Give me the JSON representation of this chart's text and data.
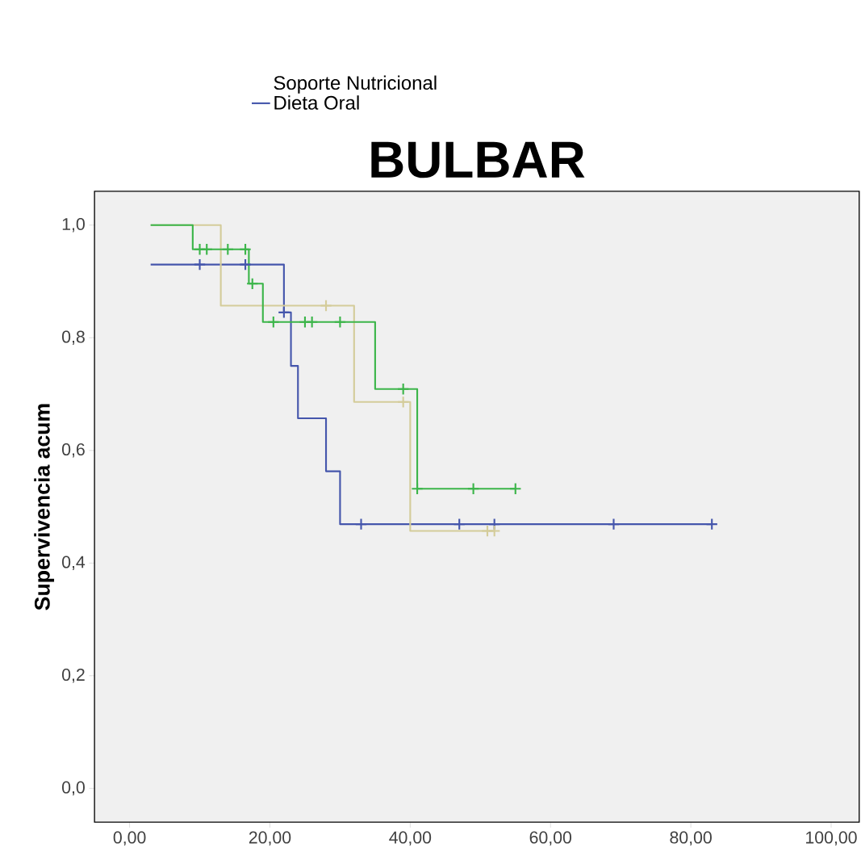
{
  "chart_data": {
    "type": "step",
    "title": "BULBAR",
    "ylabel": "Supervivencia acum",
    "legend_title": "Soporte Nutricional",
    "legend": "top left",
    "xlim": [
      -5,
      104
    ],
    "ylim": [
      -0.06,
      1.06
    ],
    "xticks": [
      {
        "value": 0,
        "label": "0,00"
      },
      {
        "value": 20,
        "label": "20,00"
      },
      {
        "value": 40,
        "label": "40,00"
      },
      {
        "value": 60,
        "label": "60,00"
      },
      {
        "value": 80,
        "label": "80,00"
      },
      {
        "value": 100,
        "label": "100,00"
      }
    ],
    "yticks": [
      {
        "value": 0,
        "label": "0,0"
      },
      {
        "value": 0.2,
        "label": "0,2"
      },
      {
        "value": 0.4,
        "label": "0,4"
      },
      {
        "value": 0.6,
        "label": "0,6"
      },
      {
        "value": 0.8,
        "label": "0,8"
      },
      {
        "value": 1.0,
        "label": "1,0"
      }
    ],
    "series": [
      {
        "name": "Dieta Oral",
        "marker": "none",
        "color": "#4556ac",
        "x": [
          3,
          22,
          23,
          24,
          28,
          30,
          83
        ],
        "values": [
          0.93,
          0.845,
          0.75,
          0.657,
          0.563,
          0.469,
          0.469
        ]
      },
      {
        "marker": "none",
        "color": "#d4cc9a",
        "x": [
          3,
          13,
          32,
          40,
          52
        ],
        "values": [
          1.0,
          0.857,
          0.686,
          0.457,
          0.457
        ]
      },
      {
        "marker": "none",
        "color": "#3cb54a",
        "x": [
          3,
          9,
          17,
          19,
          35,
          41,
          55
        ],
        "values": [
          1.0,
          0.957,
          0.896,
          0.828,
          0.709,
          0.532,
          0.532
        ]
      },
      {
        "type": "scatter",
        "marker": "cross",
        "color": "#4556ac",
        "x": [
          10,
          16.5,
          22,
          33,
          47,
          52,
          69,
          83
        ],
        "values": [
          0.93,
          0.93,
          0.845,
          0.469,
          0.469,
          0.469,
          0.469,
          0.469
        ]
      },
      {
        "type": "scatter",
        "marker": "cross",
        "color": "#d4cc9a",
        "x": [
          28,
          39,
          51,
          52
        ],
        "values": [
          0.857,
          0.686,
          0.457,
          0.457
        ]
      },
      {
        "type": "scatter",
        "marker": "cross",
        "color": "#3cb54a",
        "x": [
          10,
          11,
          14,
          16.5,
          17.5,
          20.5,
          25,
          26,
          30,
          39,
          41,
          49,
          55
        ],
        "values": [
          0.957,
          0.957,
          0.957,
          0.957,
          0.896,
          0.828,
          0.828,
          0.828,
          0.828,
          0.709,
          0.532,
          0.532,
          0.532
        ]
      }
    ]
  }
}
